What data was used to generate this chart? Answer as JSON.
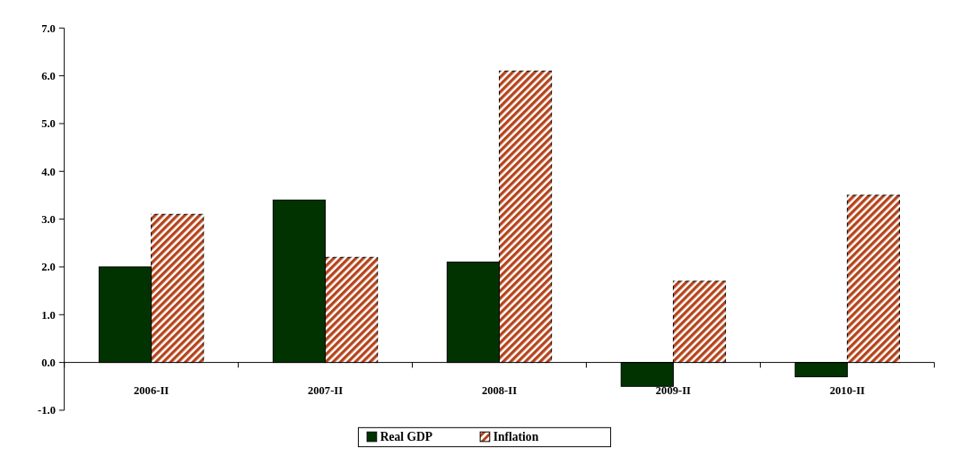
{
  "chart_data": {
    "type": "bar",
    "categories": [
      "2006-II",
      "2007-II",
      "2008-II",
      "2009-II",
      "2010-II"
    ],
    "series": [
      {
        "name": "Real GDP",
        "color": "#003300",
        "values": [
          2.0,
          3.4,
          2.1,
          -0.5,
          -0.3
        ]
      },
      {
        "name": "Inflation",
        "color": "#b5441c",
        "values": [
          3.1,
          2.2,
          6.1,
          1.7,
          3.5
        ]
      }
    ],
    "ylim": [
      -1,
      7
    ],
    "yticks": [
      {
        "value": -1,
        "label": "-1.0"
      },
      {
        "value": 0,
        "label": "0.0"
      },
      {
        "value": 1,
        "label": "1.0"
      },
      {
        "value": 2,
        "label": "2.0"
      },
      {
        "value": 3,
        "label": "3.0"
      },
      {
        "value": 4,
        "label": "4.0"
      },
      {
        "value": 5,
        "label": "5.0"
      },
      {
        "value": 6,
        "label": "6.0"
      },
      {
        "value": 7,
        "label": "7.0"
      }
    ],
    "grid": false,
    "legend": "bottom"
  }
}
